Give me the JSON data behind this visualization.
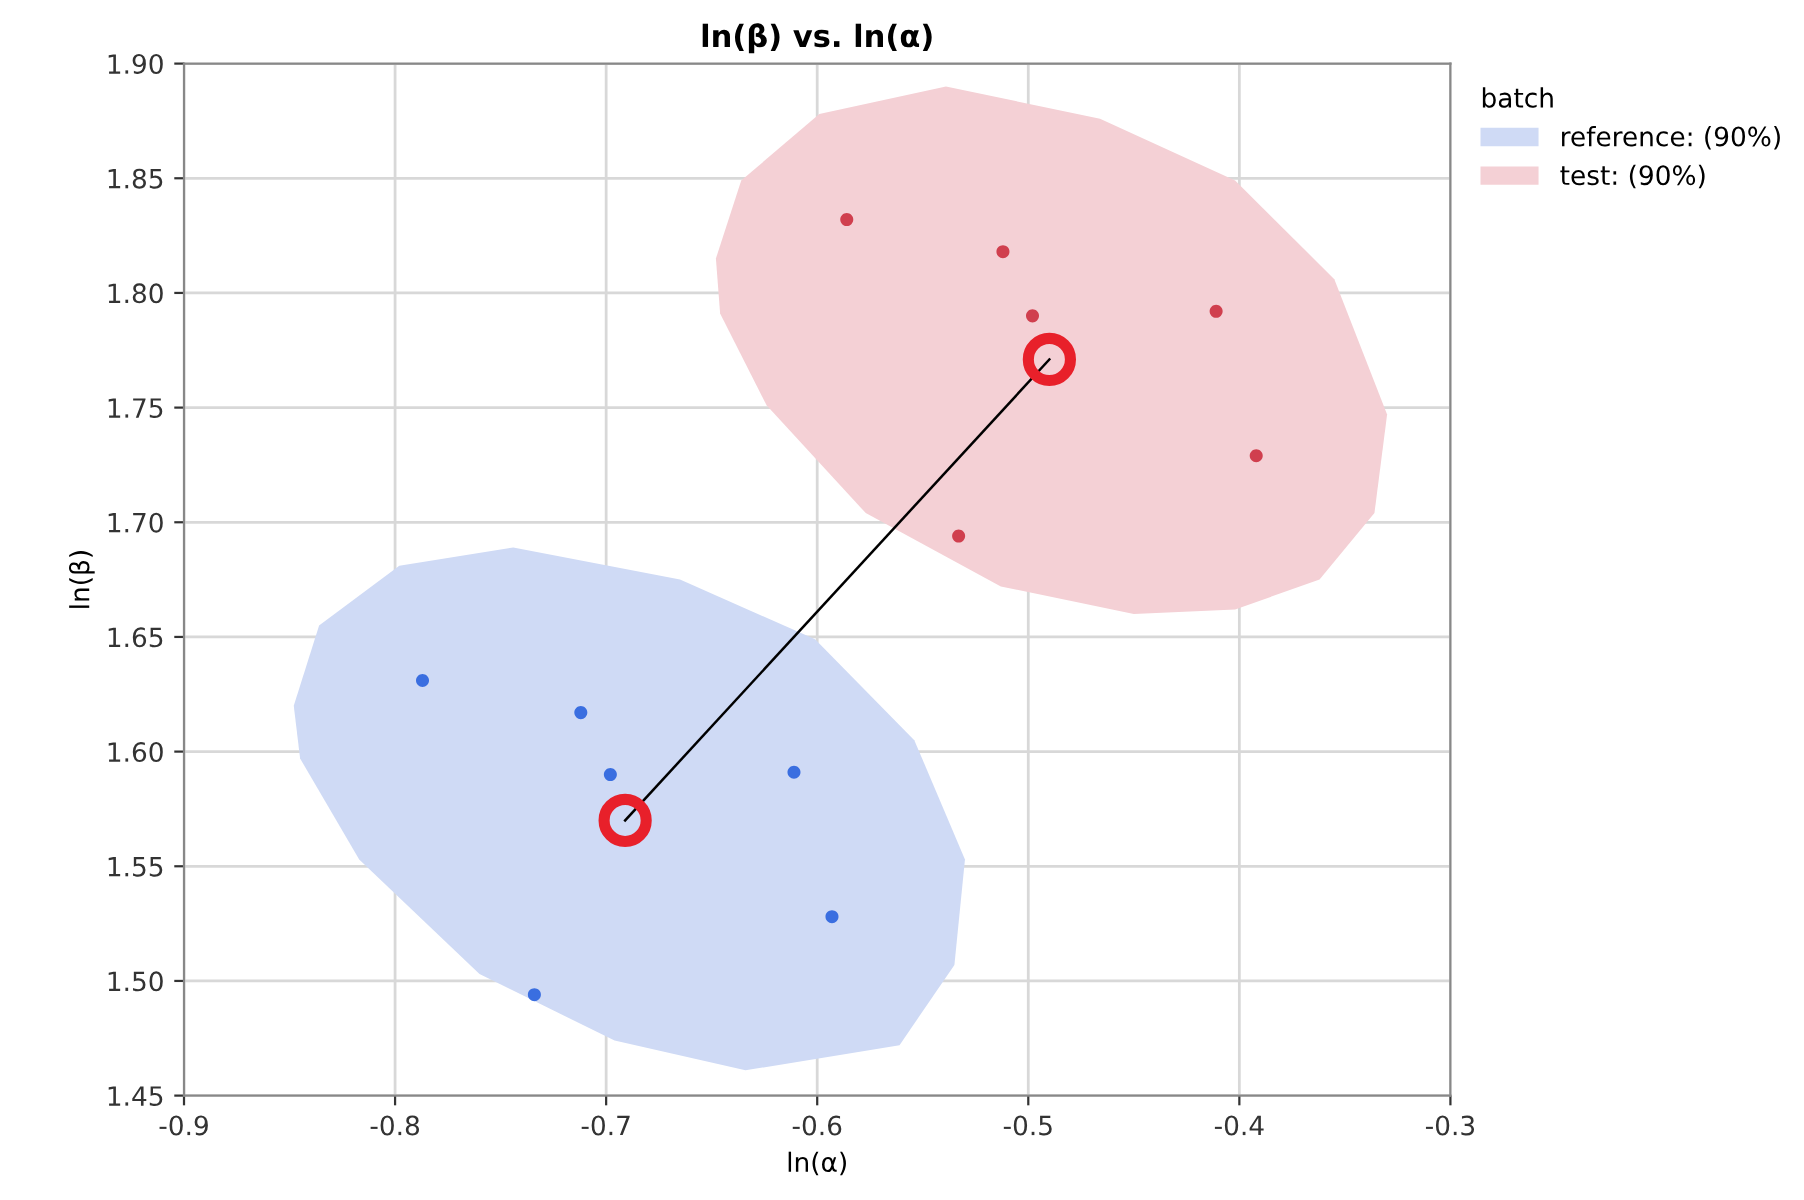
{
  "chart_data": {
    "type": "scatter",
    "title": "ln(β) vs. ln(α)",
    "xlabel": "ln(α)",
    "ylabel": "ln(β)",
    "legend_title": "batch",
    "legend": "top right",
    "xlim": [
      -0.9,
      -0.3
    ],
    "xticks": [
      -0.9,
      -0.8,
      -0.7,
      -0.6,
      -0.5,
      -0.4,
      -0.3
    ],
    "ylim": [
      1.45,
      1.9
    ],
    "yticks": [
      {
        "value": 1.45,
        "label": "1.45"
      },
      {
        "value": 1.5,
        "label": "1.50"
      },
      {
        "value": 1.55,
        "label": "1.55"
      },
      {
        "value": 1.6,
        "label": "1.60"
      },
      {
        "value": 1.65,
        "label": "1.65"
      },
      {
        "value": 1.7,
        "label": "1.70"
      },
      {
        "value": 1.75,
        "label": "1.75"
      },
      {
        "value": 1.8,
        "label": "1.80"
      },
      {
        "value": 1.85,
        "label": "1.85"
      },
      {
        "value": 1.9,
        "label": "1.90"
      }
    ],
    "grid": true,
    "series": [
      {
        "type": "area",
        "name": "reference: (90%)",
        "color": "#cfdaf5",
        "x": [
          -0.744,
          -0.665,
          -0.601,
          -0.554,
          -0.53,
          -0.535,
          -0.561,
          -0.634,
          -0.696,
          -0.76,
          -0.817,
          -0.845,
          -0.848,
          -0.836,
          -0.798
        ],
        "values": [
          1.689,
          1.675,
          1.649,
          1.605,
          1.553,
          1.507,
          1.472,
          1.461,
          1.474,
          1.503,
          1.553,
          1.597,
          1.62,
          1.655,
          1.681
        ]
      },
      {
        "type": "area",
        "name": "test: (90%)",
        "color": "#f4d0d5",
        "x": [
          -0.539,
          -0.466,
          -0.402,
          -0.355,
          -0.33,
          -0.336,
          -0.362,
          -0.402,
          -0.45,
          -0.513,
          -0.577,
          -0.624,
          -0.646,
          -0.648,
          -0.636,
          -0.599
        ],
        "values": [
          1.89,
          1.876,
          1.849,
          1.806,
          1.747,
          1.704,
          1.675,
          1.662,
          1.66,
          1.672,
          1.704,
          1.751,
          1.791,
          1.815,
          1.849,
          1.878
        ]
      },
      {
        "color": "#3a6ee0",
        "marker": "circle",
        "x": [
          -0.787,
          -0.712,
          -0.698,
          -0.611,
          -0.593,
          -0.734
        ],
        "values": [
          1.631,
          1.617,
          1.59,
          1.591,
          1.528,
          1.494
        ]
      },
      {
        "color": "#d03f4e",
        "marker": "circle",
        "x": [
          -0.586,
          -0.512,
          -0.498,
          -0.411,
          -0.392,
          -0.533
        ],
        "values": [
          1.832,
          1.818,
          1.79,
          1.792,
          1.729,
          1.694
        ]
      },
      {
        "type": "line",
        "color": "#000000",
        "marker": "none",
        "x": [
          -0.691,
          -0.49
        ],
        "values": [
          1.57,
          1.771
        ]
      },
      {
        "color": "#e8202a",
        "x": [
          -0.691,
          -0.49
        ],
        "values": [
          1.57,
          1.771
        ]
      }
    ]
  }
}
